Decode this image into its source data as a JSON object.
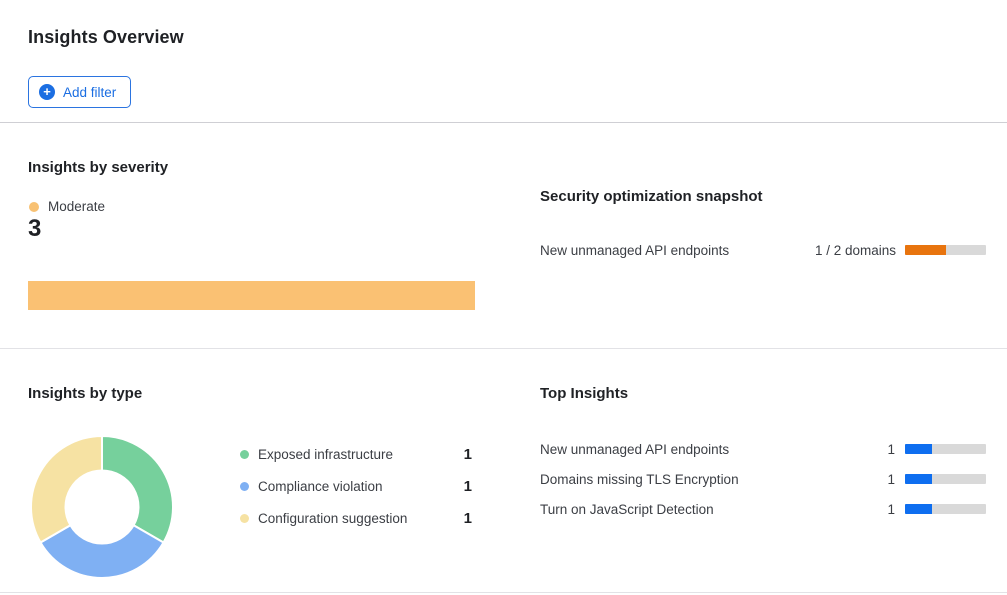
{
  "page": {
    "title": "Insights Overview"
  },
  "toolbar": {
    "add_filter_label": "Add filter",
    "accent_color": "#1b6ee2"
  },
  "insights_by_severity": {
    "title": "Insights by severity",
    "legend": [
      {
        "label": "Moderate",
        "color": "#F8C173"
      }
    ],
    "count": "3",
    "bar": {
      "value": 3,
      "max": 3,
      "color": "#FAC173"
    },
    "chart_data": {
      "type": "bar",
      "orientation": "horizontal",
      "categories": [
        "Moderate"
      ],
      "values": [
        3
      ],
      "xlim": [
        0,
        3
      ],
      "colors": [
        "#FAC173"
      ],
      "title": "Insights by severity"
    }
  },
  "security_snapshot": {
    "title": "Security optimization snapshot",
    "rows": [
      {
        "label": "New unmanaged API endpoints",
        "progress_label": "1 / 2 domains",
        "value": 1,
        "max": 2,
        "color": "#E8740E",
        "track_color": "#D9D9D9"
      }
    ]
  },
  "insights_by_type": {
    "title": "Insights by type",
    "chart_data": {
      "type": "pie",
      "donut": true,
      "labels": [
        "Exposed infrastructure",
        "Compliance violation",
        "Configuration suggestion"
      ],
      "values": [
        1,
        1,
        1
      ],
      "colors": [
        "#76D09C",
        "#7FB0F3",
        "#F6E2A3"
      ],
      "title": "Insights by type",
      "legend_position": "right"
    },
    "legend": [
      {
        "label": "Exposed infrastructure",
        "value": "1",
        "color": "#76D09C"
      },
      {
        "label": "Compliance violation",
        "value": "1",
        "color": "#7FB0F3"
      },
      {
        "label": "Configuration suggestion",
        "value": "1",
        "color": "#F6E2A3"
      }
    ]
  },
  "top_insights": {
    "title": "Top Insights",
    "rows": [
      {
        "label": "New unmanaged API endpoints",
        "value": 1,
        "max": 3,
        "color": "#0E6EF0",
        "track_color": "#D9D9D9"
      },
      {
        "label": "Domains missing TLS Encryption",
        "value": 1,
        "max": 3,
        "color": "#0E6EF0",
        "track_color": "#D9D9D9"
      },
      {
        "label": "Turn on JavaScript Detection",
        "value": 1,
        "max": 3,
        "color": "#0E6EF0",
        "track_color": "#D9D9D9"
      }
    ],
    "chart_data": {
      "type": "bar",
      "orientation": "horizontal",
      "categories": [
        "New unmanaged API endpoints",
        "Domains missing TLS Encryption",
        "Turn on JavaScript Detection"
      ],
      "values": [
        1,
        1,
        1
      ],
      "xlim": [
        0,
        3
      ],
      "colors": [
        "#0E6EF0",
        "#0E6EF0",
        "#0E6EF0"
      ],
      "title": "Top Insights"
    }
  }
}
